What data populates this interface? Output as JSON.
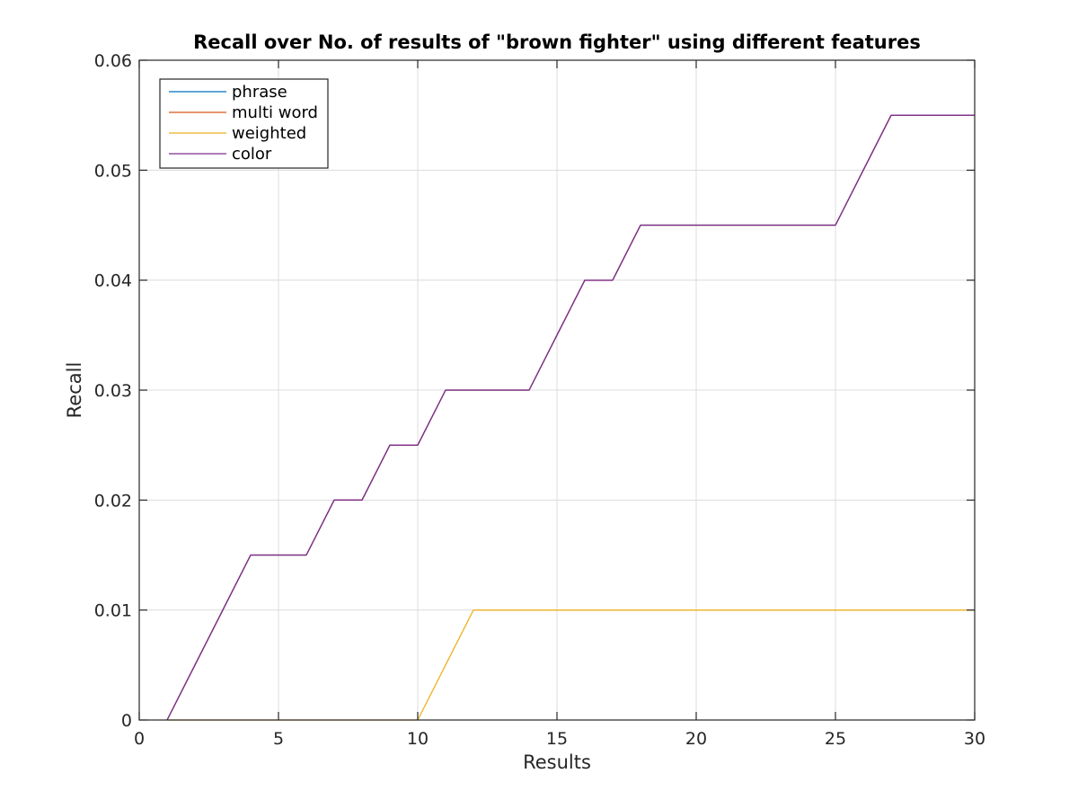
{
  "chart_data": {
    "type": "line",
    "title": "Recall over No. of results of \"brown fighter\" using different features",
    "xlabel": "Results",
    "ylabel": "Recall",
    "xlim": [
      0,
      30
    ],
    "ylim": [
      0,
      0.06
    ],
    "xticks": [
      "0",
      "5",
      "10",
      "15",
      "20",
      "25",
      "30"
    ],
    "yticks": [
      "0",
      "0.01",
      "0.02",
      "0.03",
      "0.04",
      "0.05",
      "0.06"
    ],
    "grid": true,
    "legend_position": "top-left",
    "x": [
      1,
      2,
      3,
      4,
      5,
      6,
      7,
      8,
      9,
      10,
      11,
      12,
      13,
      14,
      15,
      16,
      17,
      18,
      19,
      20,
      21,
      22,
      23,
      24,
      25,
      26,
      27,
      28,
      29,
      30
    ],
    "series": [
      {
        "name": "phrase",
        "color": "#0072BD",
        "values": [
          0,
          0.005,
          0.01,
          0.015,
          0.015,
          0.015,
          0.02,
          0.02,
          0.025,
          0.025,
          0.03,
          0.03,
          0.03,
          0.03,
          0.035,
          0.04,
          0.04,
          0.045,
          0.045,
          0.045,
          0.045,
          0.045,
          0.045,
          0.045,
          0.045,
          0.05,
          0.055,
          0.055,
          0.055,
          0.055
        ]
      },
      {
        "name": "multi word",
        "color": "#D95319",
        "values": [
          0,
          0.005,
          0.01,
          0.015,
          0.015,
          0.015,
          0.02,
          0.02,
          0.025,
          0.025,
          0.03,
          0.03,
          0.03,
          0.03,
          0.035,
          0.04,
          0.04,
          0.045,
          0.045,
          0.045,
          0.045,
          0.045,
          0.045,
          0.045,
          0.045,
          0.05,
          0.055,
          0.055,
          0.055,
          0.055
        ]
      },
      {
        "name": "weighted",
        "color": "#EDB120",
        "values": [
          0,
          0,
          0,
          0,
          0,
          0,
          0,
          0,
          0,
          0,
          0.005,
          0.01,
          0.01,
          0.01,
          0.01,
          0.01,
          0.01,
          0.01,
          0.01,
          0.01,
          0.01,
          0.01,
          0.01,
          0.01,
          0.01,
          0.01,
          0.01,
          0.01,
          0.01,
          0.01
        ]
      },
      {
        "name": "color",
        "color": "#7E2F8E",
        "values": [
          0,
          0.005,
          0.01,
          0.015,
          0.015,
          0.015,
          0.02,
          0.02,
          0.025,
          0.025,
          0.03,
          0.03,
          0.03,
          0.03,
          0.035,
          0.04,
          0.04,
          0.045,
          0.045,
          0.045,
          0.045,
          0.045,
          0.045,
          0.045,
          0.045,
          0.05,
          0.055,
          0.055,
          0.055,
          0.055
        ]
      }
    ]
  }
}
